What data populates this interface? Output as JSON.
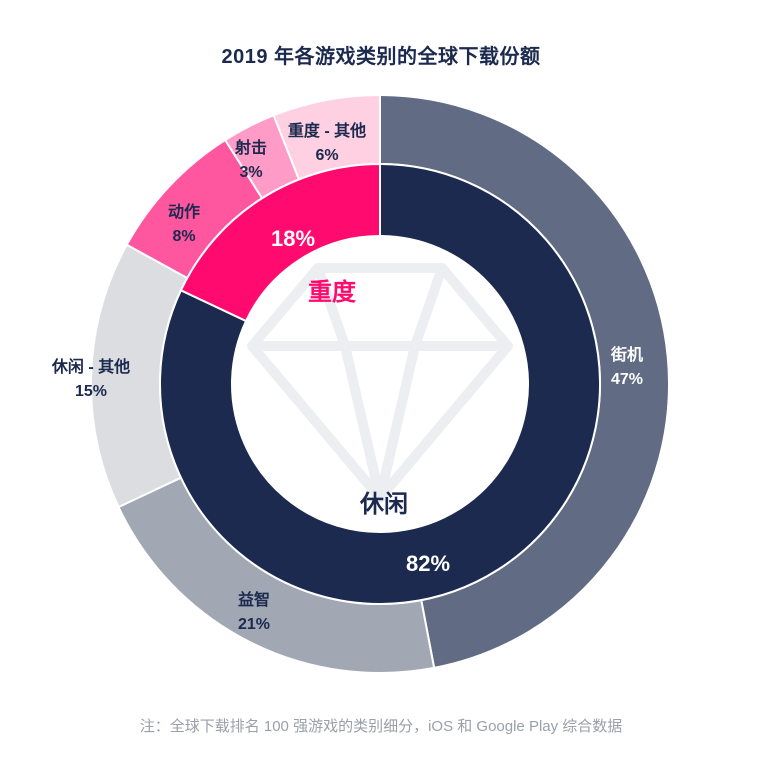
{
  "chart_data": {
    "type": "pie",
    "title": "2019 年各游戏类别的全球下载份额",
    "footnote": "注：全球下载排名 100 强游戏的类别细分，iOS 和 Google Play 综合数据",
    "inner_ring": [
      {
        "name": "休闲",
        "value": 82,
        "value_label": "82%",
        "color": "#1b2a4e"
      },
      {
        "name": "重度",
        "value": 18,
        "value_label": "18%",
        "color": "#ff0b70"
      }
    ],
    "outer_ring": [
      {
        "name": "街机",
        "value": 47,
        "value_label": "47%",
        "color": "#616b83",
        "text_color": "#ffffff"
      },
      {
        "name": "益智",
        "value": 21,
        "value_label": "21%",
        "color": "#a1a7b3",
        "text_color": "#1b2a4e"
      },
      {
        "name": "休闲 - 其他",
        "value": 15,
        "value_label": "15%",
        "color": "#dcdde1",
        "text_color": "#1b2a4e"
      },
      {
        "name": "动作",
        "value": 8,
        "value_label": "8%",
        "color": "#ff579f",
        "text_color": "#1b2a4e"
      },
      {
        "name": "射击",
        "value": 3,
        "value_label": "3%",
        "color": "#ff9bc7",
        "text_color": "#1b2a4e"
      },
      {
        "name": "重度 - 其他",
        "value": 6,
        "value_label": "6%",
        "color": "#ffcfe2",
        "text_color": "#1b2a4e"
      }
    ]
  }
}
